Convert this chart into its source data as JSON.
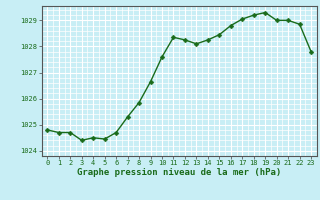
{
  "x": [
    0,
    1,
    2,
    3,
    4,
    5,
    6,
    7,
    8,
    9,
    10,
    11,
    12,
    13,
    14,
    15,
    16,
    17,
    18,
    19,
    20,
    21,
    22,
    23
  ],
  "y": [
    1024.8,
    1024.7,
    1024.7,
    1024.4,
    1024.5,
    1024.45,
    1024.7,
    1025.3,
    1025.85,
    1026.65,
    1027.6,
    1028.35,
    1028.25,
    1028.1,
    1028.25,
    1028.45,
    1028.8,
    1029.05,
    1029.2,
    1029.3,
    1029.0,
    1029.0,
    1028.85,
    1027.8
  ],
  "line_color": "#1a6b1a",
  "marker_color": "#1a6b1a",
  "bg_color": "#c8eef5",
  "grid_color": "#ffffff",
  "xlabel": "Graphe pression niveau de la mer (hPa)",
  "ylim": [
    1023.8,
    1029.55
  ],
  "yticks": [
    1024,
    1025,
    1026,
    1027,
    1028,
    1029
  ],
  "xlim": [
    -0.5,
    23.5
  ],
  "xticks": [
    0,
    1,
    2,
    3,
    4,
    5,
    6,
    7,
    8,
    9,
    10,
    11,
    12,
    13,
    14,
    15,
    16,
    17,
    18,
    19,
    20,
    21,
    22,
    23
  ],
  "tick_fontsize": 5.0,
  "xlabel_fontsize": 6.5,
  "line_width": 1.0,
  "marker_size": 2.5
}
